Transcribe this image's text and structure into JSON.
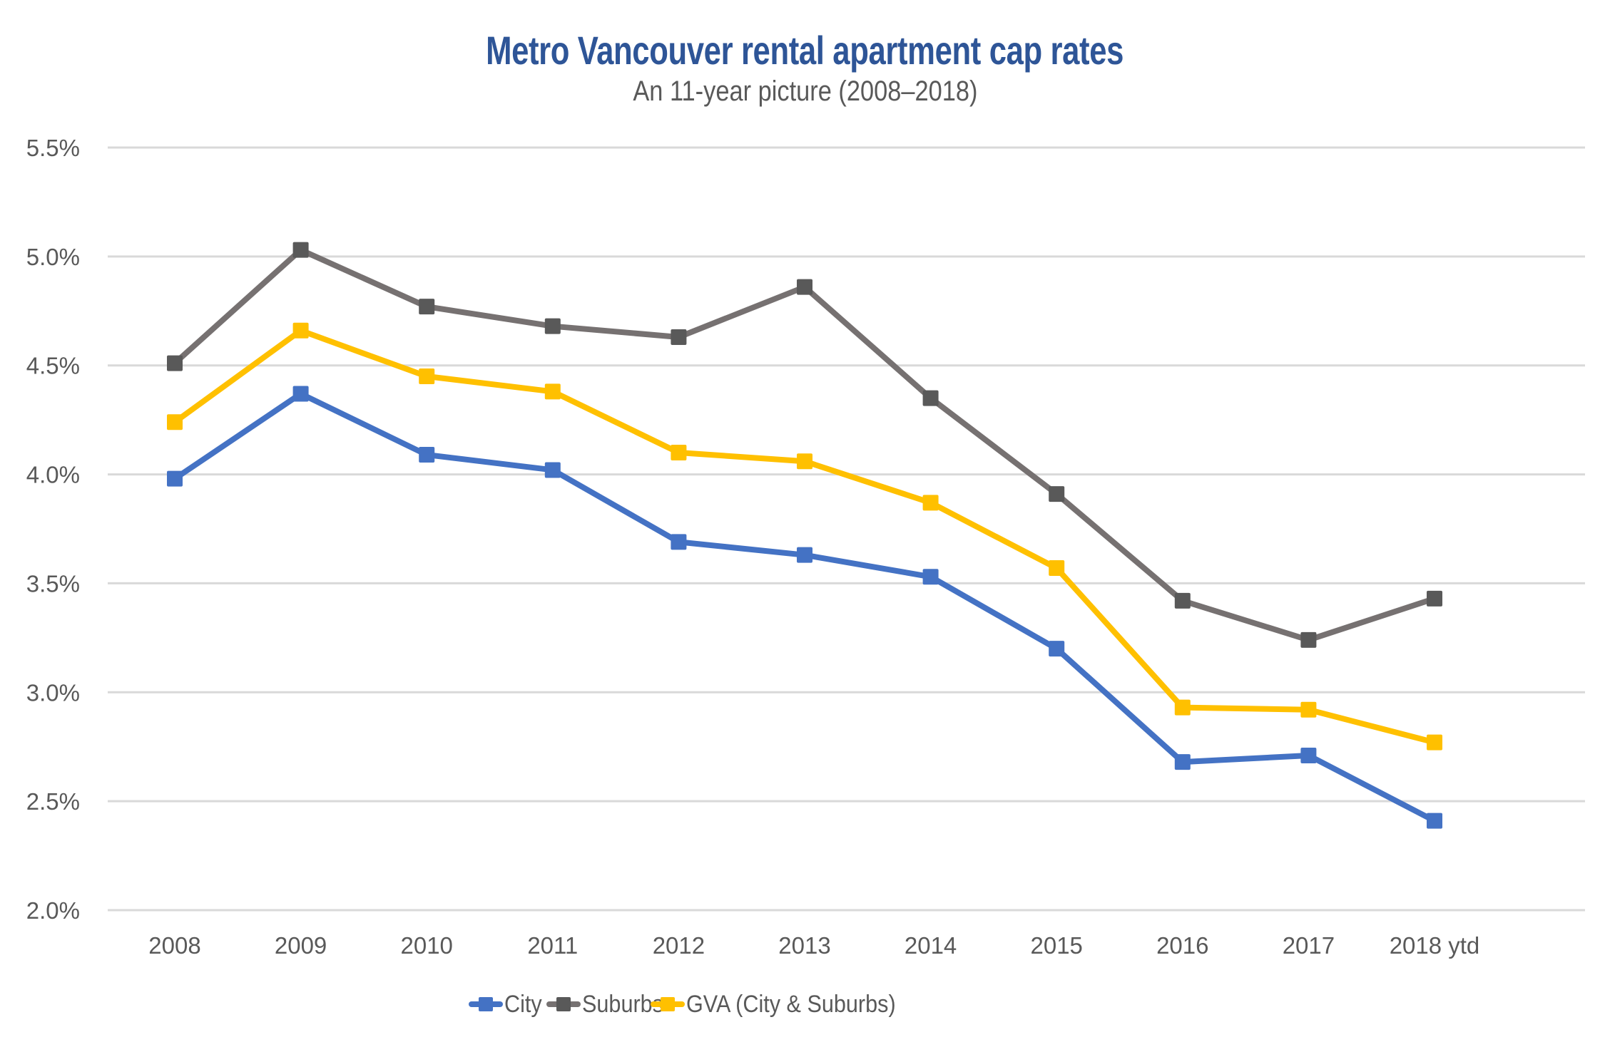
{
  "chart_data": {
    "type": "line",
    "title": "Metro Vancouver rental apartment cap rates",
    "subtitle": "An 11-year picture (2008–2018)",
    "xlabel": "",
    "ylabel": "",
    "categories": [
      "2008",
      "2009",
      "2010",
      "2011",
      "2012",
      "2013",
      "2014",
      "2015",
      "2016",
      "2017",
      "2018 ytd"
    ],
    "ylim": [
      2.0,
      5.5
    ],
    "yticks": [
      2.0,
      2.5,
      3.0,
      3.5,
      4.0,
      4.5,
      5.0,
      5.5
    ],
    "ytick_labels": [
      "2.0%",
      "2.5%",
      "3.0%",
      "3.5%",
      "4.0%",
      "4.5%",
      "5.0%",
      "5.5%"
    ],
    "grid": "horizontal",
    "legend_position": "bottom-center",
    "marker": "square",
    "series": [
      {
        "name": "City",
        "line_color": "#4472C4",
        "marker_color": "#4472C4",
        "values": [
          3.98,
          4.37,
          4.09,
          4.02,
          3.69,
          3.63,
          3.53,
          3.2,
          2.68,
          2.71,
          2.41
        ]
      },
      {
        "name": "Suburbs",
        "line_color": "#767171",
        "marker_color": "#595959",
        "values": [
          4.51,
          5.03,
          4.77,
          4.68,
          4.63,
          4.86,
          4.35,
          3.91,
          3.42,
          3.24,
          3.43
        ]
      },
      {
        "name": "GVA (City & Suburbs)",
        "line_color": "#FFC000",
        "marker_color": "#FFC000",
        "values": [
          4.24,
          4.66,
          4.45,
          4.38,
          4.1,
          4.06,
          3.87,
          3.57,
          2.93,
          2.92,
          2.77
        ]
      }
    ]
  },
  "colors": {
    "title": "#2E5597",
    "text": "#595959",
    "gridline": "#D9D9D9"
  }
}
